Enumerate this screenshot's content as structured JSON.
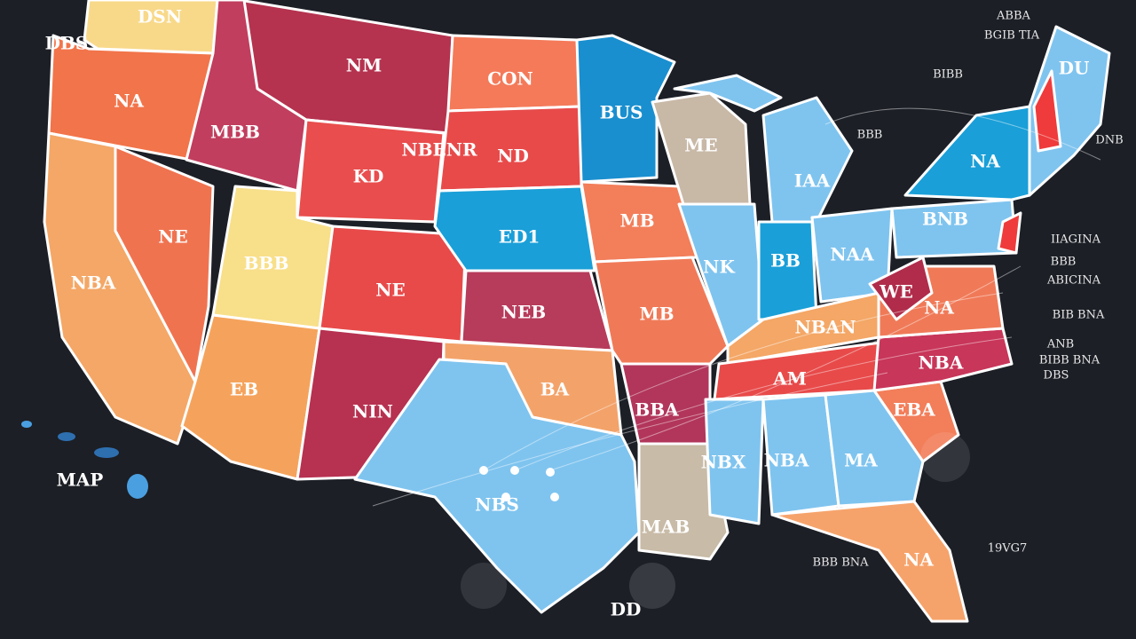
{
  "map": {
    "state_labels": [
      "DSN",
      "DBS",
      "NA",
      "NM",
      "CON",
      "BUS",
      "MBB",
      "ND",
      "NBENR",
      "KD",
      "ME",
      "IAA",
      "ED1",
      "NE",
      "MB",
      "BBB",
      "NE",
      "NBA",
      "NK",
      "BB",
      "NAA",
      "BNB",
      "NA",
      "DU",
      "NEB",
      "MB",
      "NBAN",
      "NA",
      "WE",
      "EB",
      "BA",
      "NIN",
      "AM",
      "NBA",
      "BBA",
      "EBA",
      "NBX",
      "NBA",
      "MA",
      "NBS",
      "MAB",
      "NA",
      "MAP",
      "DD"
    ],
    "annotations": [
      "ABBA",
      "BGIB TIA",
      "BIBB",
      "BBB",
      "DNB",
      "IIAGINA",
      "BBB",
      "ABICINA",
      "BIB BNA",
      "ANB",
      "BIBB BNA",
      "DBS",
      "19VG7",
      "BBB BNA"
    ]
  }
}
